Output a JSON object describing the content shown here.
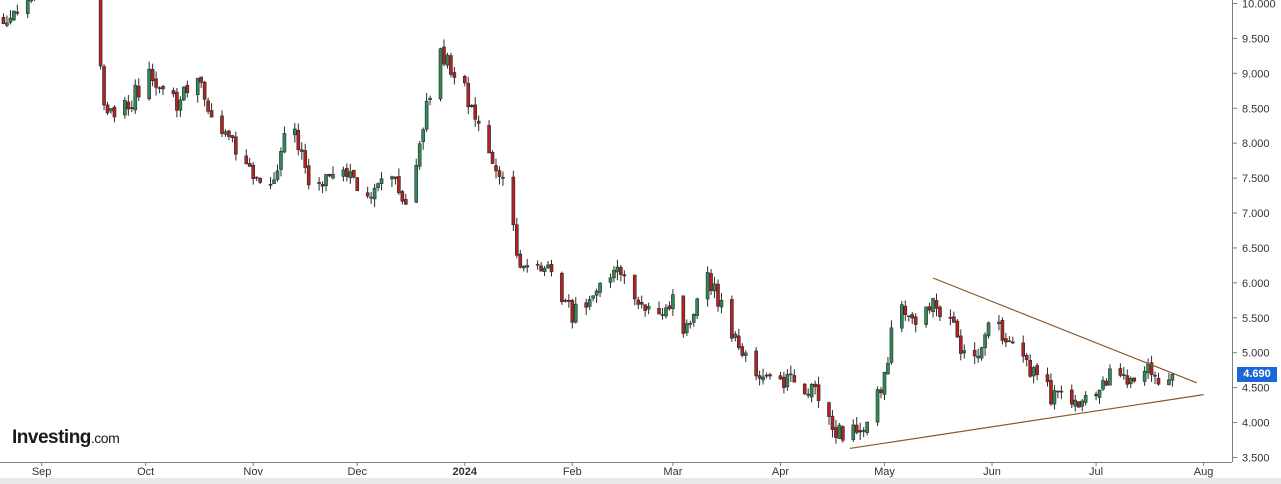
{
  "logo": {
    "main": "Investing",
    "suffix": ".com"
  },
  "colors": {
    "up": "#2e8b57",
    "down": "#b22222",
    "wick": "#2b2b2b",
    "trendline": "#8b5a2b",
    "badge": "#1c67d6",
    "axis": "#7f7f7f"
  },
  "last_price_badge": "4.690",
  "chart_data": {
    "type": "candlestick",
    "title": "",
    "xlabel": "",
    "ylabel": "",
    "ylim": [
      3.45,
      10.05
    ],
    "y_ticks": [
      "3.500",
      "4.000",
      "4.500",
      "5.000",
      "5.500",
      "6.000",
      "6.500",
      "7.000",
      "7.500",
      "8.000",
      "8.500",
      "9.000",
      "9.500",
      "10.000"
    ],
    "y_tick_values": [
      3.5,
      4.0,
      4.5,
      5.0,
      5.5,
      6.0,
      6.5,
      7.0,
      7.5,
      8.0,
      8.5,
      9.0,
      9.5,
      10.0
    ],
    "x_range": [
      "2023-08-20",
      "2024-08-04"
    ],
    "month_labels": [
      {
        "label": "Sep",
        "date": "2023-09-01"
      },
      {
        "label": "Oct",
        "date": "2023-10-01"
      },
      {
        "label": "Nov",
        "date": "2023-11-01"
      },
      {
        "label": "Dec",
        "date": "2023-12-01"
      },
      {
        "label": "2024",
        "date": "2024-01-01",
        "bold": true
      },
      {
        "label": "Feb",
        "date": "2024-02-01"
      },
      {
        "label": "Mar",
        "date": "2024-03-01"
      },
      {
        "label": "Apr",
        "date": "2024-04-01"
      },
      {
        "label": "May",
        "date": "2024-05-01"
      },
      {
        "label": "Jun",
        "date": "2024-06-01"
      },
      {
        "label": "Jul",
        "date": "2024-07-01"
      },
      {
        "label": "Aug",
        "date": "2024-08-01"
      }
    ],
    "anchors": [
      [
        "2023-08-20",
        9.8
      ],
      [
        "2023-08-30",
        10.1
      ],
      [
        "2023-09-17",
        9.5
      ],
      [
        "2023-09-19",
        8.6
      ],
      [
        "2023-09-22",
        8.3
      ],
      [
        "2023-09-28",
        8.7
      ],
      [
        "2023-10-02",
        9.0
      ],
      [
        "2023-10-10",
        8.6
      ],
      [
        "2023-10-15",
        9.0
      ],
      [
        "2023-10-20",
        8.4
      ],
      [
        "2023-10-28",
        7.8
      ],
      [
        "2023-11-01",
        7.5
      ],
      [
        "2023-11-05",
        7.3
      ],
      [
        "2023-11-12",
        8.3
      ],
      [
        "2023-11-18",
        7.3
      ],
      [
        "2023-11-26",
        7.8
      ],
      [
        "2023-12-03",
        7.2
      ],
      [
        "2023-12-10",
        7.7
      ],
      [
        "2023-12-15",
        7.1
      ],
      [
        "2023-12-22",
        8.7
      ],
      [
        "2023-12-25",
        9.3
      ],
      [
        "2023-12-30",
        9.0
      ],
      [
        "2024-01-04",
        8.4
      ],
      [
        "2024-01-10",
        7.6
      ],
      [
        "2024-01-14",
        7.2
      ],
      [
        "2024-01-16",
        6.4
      ],
      [
        "2024-01-20",
        6.1
      ],
      [
        "2024-01-25",
        6.3
      ],
      [
        "2024-02-01",
        5.5
      ],
      [
        "2024-02-08",
        6.0
      ],
      [
        "2024-02-15",
        6.2
      ],
      [
        "2024-02-22",
        5.6
      ],
      [
        "2024-03-01",
        5.7
      ],
      [
        "2024-03-05",
        5.3
      ],
      [
        "2024-03-10",
        6.2
      ],
      [
        "2024-03-15",
        5.7
      ],
      [
        "2024-03-20",
        5.1
      ],
      [
        "2024-03-25",
        4.8
      ],
      [
        "2024-04-01",
        4.6
      ],
      [
        "2024-04-10",
        4.5
      ],
      [
        "2024-04-17",
        3.8
      ],
      [
        "2024-04-21",
        3.9
      ],
      [
        "2024-04-26",
        4.0
      ],
      [
        "2024-04-30",
        4.5
      ],
      [
        "2024-05-05",
        5.7
      ],
      [
        "2024-05-10",
        5.3
      ],
      [
        "2024-05-15",
        5.8
      ],
      [
        "2024-05-20",
        5.4
      ],
      [
        "2024-05-26",
        4.8
      ],
      [
        "2024-06-01",
        5.6
      ],
      [
        "2024-06-06",
        5.1
      ],
      [
        "2024-06-12",
        4.8
      ],
      [
        "2024-06-18",
        4.4
      ],
      [
        "2024-06-25",
        4.3
      ],
      [
        "2024-07-01",
        4.3
      ],
      [
        "2024-07-05",
        4.7
      ],
      [
        "2024-07-10",
        4.6
      ],
      [
        "2024-07-16",
        4.85
      ],
      [
        "2024-07-20",
        4.5
      ],
      [
        "2024-07-23",
        4.69
      ]
    ],
    "trendlines": [
      {
        "from": [
          "2024-05-15",
          6.07
        ],
        "to": [
          "2024-07-30",
          4.57
        ]
      },
      {
        "from": [
          "2024-04-21",
          3.63
        ],
        "to": [
          "2024-08-01",
          4.4
        ]
      }
    ]
  }
}
